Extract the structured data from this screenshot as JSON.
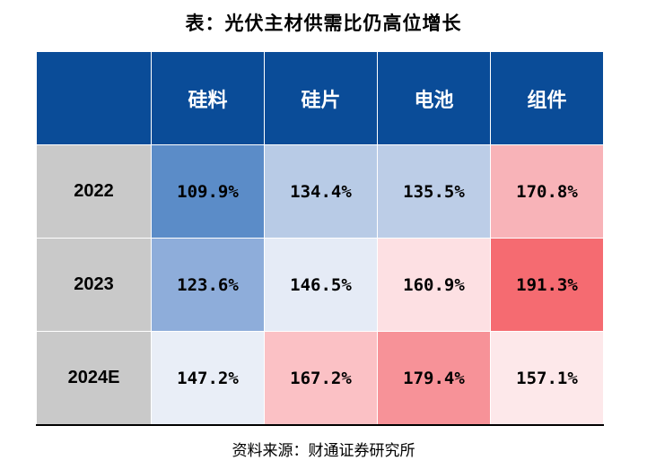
{
  "title": "表：光伏主材供需比仍高位增长",
  "table": {
    "columns": [
      "",
      "硅料",
      "硅片",
      "电池",
      "组件"
    ],
    "rows": [
      {
        "year": "2022",
        "cells": [
          {
            "text": "109.9%",
            "color": "#5b8cc8"
          },
          {
            "text": "134.4%",
            "color": "#b8cbe6"
          },
          {
            "text": "135.5%",
            "color": "#bccde7"
          },
          {
            "text": "170.8%",
            "color": "#f8b3b8"
          }
        ]
      },
      {
        "year": "2023",
        "cells": [
          {
            "text": "123.6%",
            "color": "#8ead da"
          },
          {
            "text": "146.5%",
            "color": "#e5ebf6"
          },
          {
            "text": "160.9%",
            "color": "#fde0e3"
          },
          {
            "text": "191.3%",
            "color": "#f56b71"
          }
        ]
      },
      {
        "year": "2024E",
        "cells": [
          {
            "text": "147.2%",
            "color": "#e9eef7"
          },
          {
            "text": "167.2%",
            "color": "#fbc1c5"
          },
          {
            "text": "179.4%",
            "color": "#f79298"
          },
          {
            "text": "157.1%",
            "color": "#fde8ea"
          }
        ]
      }
    ]
  },
  "source": "资料来源：财通证券研究所",
  "colors": {
    "header_bg": "#0a4c98",
    "header_text": "#ffffff",
    "year_bg": "#c9c9c9"
  }
}
